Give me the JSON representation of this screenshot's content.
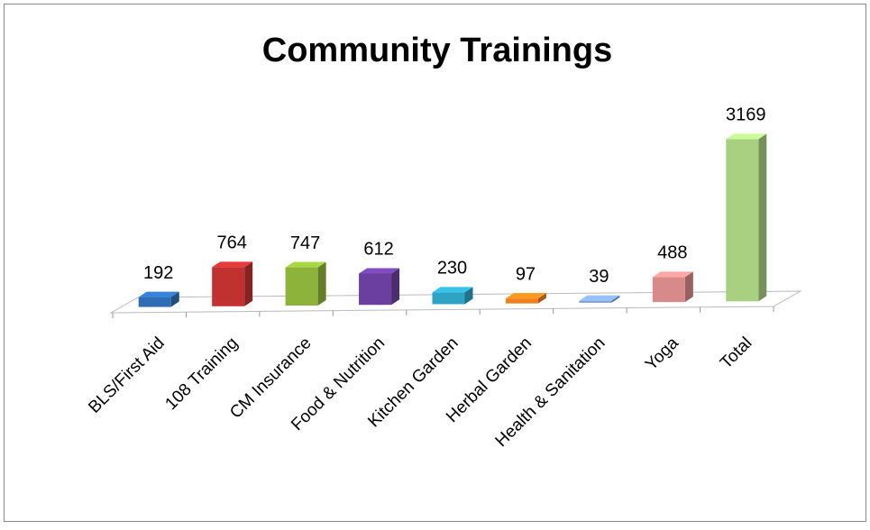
{
  "chart_data": {
    "type": "bar3d",
    "title": "Community Trainings",
    "categories": [
      "BLS/First Aid",
      "108 Training",
      "CM Insurance",
      "Food & Nutrition",
      "Kitchen Garden",
      "Herbal Garden",
      "Health & Sanitation",
      "Yoga",
      "Total"
    ],
    "values": [
      192,
      764,
      747,
      612,
      230,
      97,
      39,
      488,
      3169
    ],
    "colors": [
      "#2e6db5",
      "#c0312f",
      "#8db33a",
      "#6b3fa0",
      "#2ea3c4",
      "#f07f1a",
      "#7fa0d0",
      "#d88a8a",
      "#a8d080"
    ]
  }
}
